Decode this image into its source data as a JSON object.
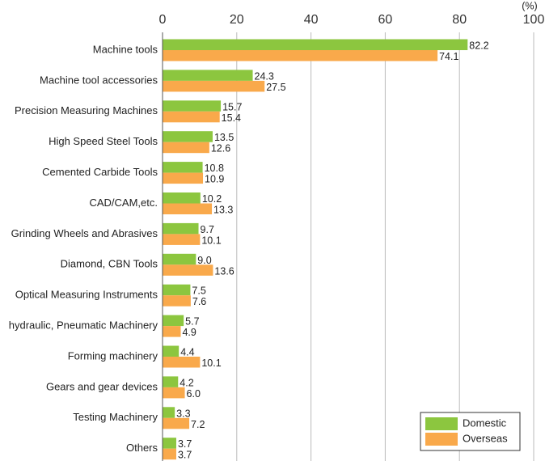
{
  "chart_data": {
    "type": "bar",
    "orientation": "horizontal",
    "x_unit_label": "(%)",
    "categories": [
      "Machine tools",
      "Machine tool accessories",
      "Precision Measuring Machines",
      "High Speed Steel Tools",
      "Cemented Carbide Tools",
      "CAD/CAM,etc.",
      "Grinding Wheels and Abrasives",
      "Diamond, CBN Tools",
      "Optical Measuring Instruments",
      "hydraulic, Pneumatic Machinery",
      "Forming machinery",
      "Gears and gear devices",
      "Testing Machinery",
      "Others"
    ],
    "series": [
      {
        "name": "Domestic",
        "color": "#8cc63f",
        "values": [
          82.2,
          24.3,
          15.7,
          13.5,
          10.8,
          10.2,
          9.7,
          9.0,
          7.5,
          5.7,
          4.4,
          4.2,
          3.3,
          3.7
        ],
        "value_labels": [
          "82.2",
          "24.3",
          "15.7",
          "13.5",
          "10.8",
          "10.2",
          "9.7",
          "9.0",
          "7.5",
          "5.7",
          "4.4",
          "4.2",
          "3.3",
          "3.7"
        ]
      },
      {
        "name": "Overseas",
        "color": "#f9a94b",
        "values": [
          74.1,
          27.5,
          15.4,
          12.6,
          10.9,
          13.3,
          10.1,
          13.6,
          7.6,
          4.9,
          10.1,
          6.0,
          7.2,
          3.7
        ],
        "value_labels": [
          "74.1",
          "27.5",
          "15.4",
          "12.6",
          "10.9",
          "13.3",
          "10.1",
          "13.6",
          "7.6",
          "4.9",
          "10.1",
          "6.0",
          "7.2",
          "3.7"
        ]
      }
    ],
    "xlim": [
      0,
      100
    ],
    "xticks": [
      0,
      20,
      40,
      60,
      80,
      100
    ],
    "grid": true,
    "legend": "lower right"
  }
}
